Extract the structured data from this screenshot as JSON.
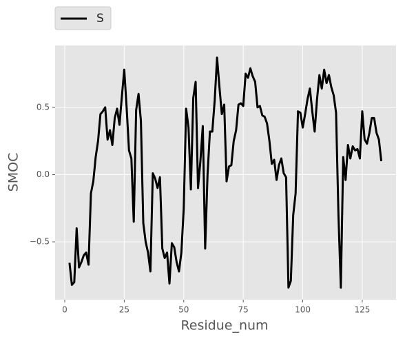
{
  "chart_data": {
    "type": "line",
    "xlabel": "Residue_num",
    "ylabel": "SMOC",
    "x": [
      2,
      3,
      4,
      5,
      6,
      7,
      8,
      9,
      10,
      11,
      12,
      13,
      14,
      15,
      16,
      17,
      18,
      19,
      20,
      21,
      22,
      23,
      24,
      25,
      26,
      27,
      28,
      29,
      30,
      31,
      32,
      33,
      34,
      35,
      36,
      37,
      38,
      39,
      40,
      41,
      42,
      43,
      44,
      45,
      46,
      47,
      48,
      49,
      50,
      51,
      52,
      53,
      54,
      55,
      56,
      57,
      58,
      59,
      60,
      61,
      62,
      63,
      64,
      65,
      66,
      67,
      68,
      69,
      70,
      71,
      72,
      73,
      74,
      75,
      76,
      77,
      78,
      79,
      80,
      81,
      82,
      83,
      84,
      85,
      86,
      87,
      88,
      89,
      90,
      91,
      92,
      93,
      94,
      95,
      96,
      97,
      98,
      99,
      100,
      101,
      102,
      103,
      104,
      105,
      106,
      107,
      108,
      109,
      110,
      111,
      112,
      113,
      114,
      115,
      116,
      117,
      118,
      119,
      120,
      121,
      122,
      123,
      124,
      125,
      126,
      127,
      128,
      129,
      130,
      131,
      132,
      133
    ],
    "series": [
      {
        "name": "S",
        "color": "#000000",
        "values": [
          -0.656,
          -0.82,
          -0.8,
          -0.4,
          -0.69,
          -0.65,
          -0.6,
          -0.58,
          -0.67,
          -0.14,
          -0.05,
          0.13,
          0.25,
          0.45,
          0.47,
          0.5,
          0.26,
          0.33,
          0.22,
          0.42,
          0.49,
          0.37,
          0.58,
          0.78,
          0.5,
          0.18,
          0.12,
          -0.35,
          0.48,
          0.6,
          0.4,
          -0.36,
          -0.5,
          -0.58,
          -0.72,
          0.01,
          -0.03,
          -0.1,
          -0.02,
          -0.55,
          -0.62,
          -0.58,
          -0.81,
          -0.51,
          -0.54,
          -0.65,
          -0.72,
          -0.58,
          -0.25,
          0.49,
          0.35,
          -0.11,
          0.57,
          0.69,
          -0.1,
          0.1,
          0.36,
          -0.55,
          0.0,
          0.32,
          0.32,
          0.55,
          0.87,
          0.65,
          0.45,
          0.52,
          -0.05,
          0.06,
          0.07,
          0.25,
          0.33,
          0.52,
          0.53,
          0.51,
          0.75,
          0.72,
          0.79,
          0.73,
          0.69,
          0.5,
          0.51,
          0.44,
          0.43,
          0.38,
          0.25,
          0.08,
          0.11,
          -0.04,
          0.07,
          0.12,
          0.01,
          -0.02,
          -0.84,
          -0.79,
          -0.3,
          -0.14,
          0.47,
          0.46,
          0.35,
          0.45,
          0.56,
          0.64,
          0.47,
          0.32,
          0.56,
          0.74,
          0.64,
          0.78,
          0.68,
          0.74,
          0.65,
          0.59,
          0.46,
          -0.3,
          -0.84,
          0.13,
          -0.04,
          0.22,
          0.12,
          0.21,
          0.18,
          0.19,
          0.12,
          0.47,
          0.26,
          0.23,
          0.31,
          0.42,
          0.42,
          0.31,
          0.26,
          0.1
        ]
      }
    ],
    "xlim": [
      -4.05,
      139.2
    ],
    "ylim": [
      -0.93,
      0.96
    ],
    "xticks": [
      0,
      25,
      50,
      75,
      100,
      125
    ],
    "yticks": [
      {
        "value": -0.5,
        "label": "−0.5"
      },
      {
        "value": 0.0,
        "label": "0.0"
      },
      0.5
    ],
    "grid": true,
    "legend": "upper left outside"
  }
}
